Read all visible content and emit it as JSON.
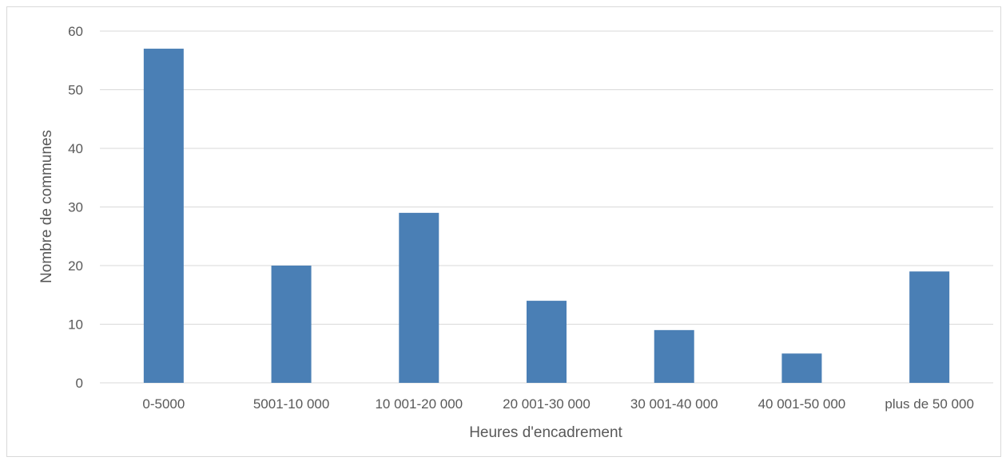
{
  "chart_data": {
    "type": "bar",
    "title": "",
    "xlabel": "Heures d'encadrement",
    "ylabel": "Nombre de communes",
    "categories": [
      "0-5000",
      "5001-10 000",
      "10 001-20 000",
      "20 001-30 000",
      "30 001-40 000",
      "40 001-50 000",
      "plus de 50 000"
    ],
    "values": [
      57,
      20,
      29,
      14,
      9,
      5,
      19
    ],
    "ylim": [
      0,
      60
    ],
    "yticks": [
      "0",
      "10",
      "20",
      "30",
      "40",
      "50",
      "60"
    ],
    "grid": true,
    "legend": "none",
    "bar_color": "#4a7fb5",
    "grid_color": "#d9d9d9"
  }
}
